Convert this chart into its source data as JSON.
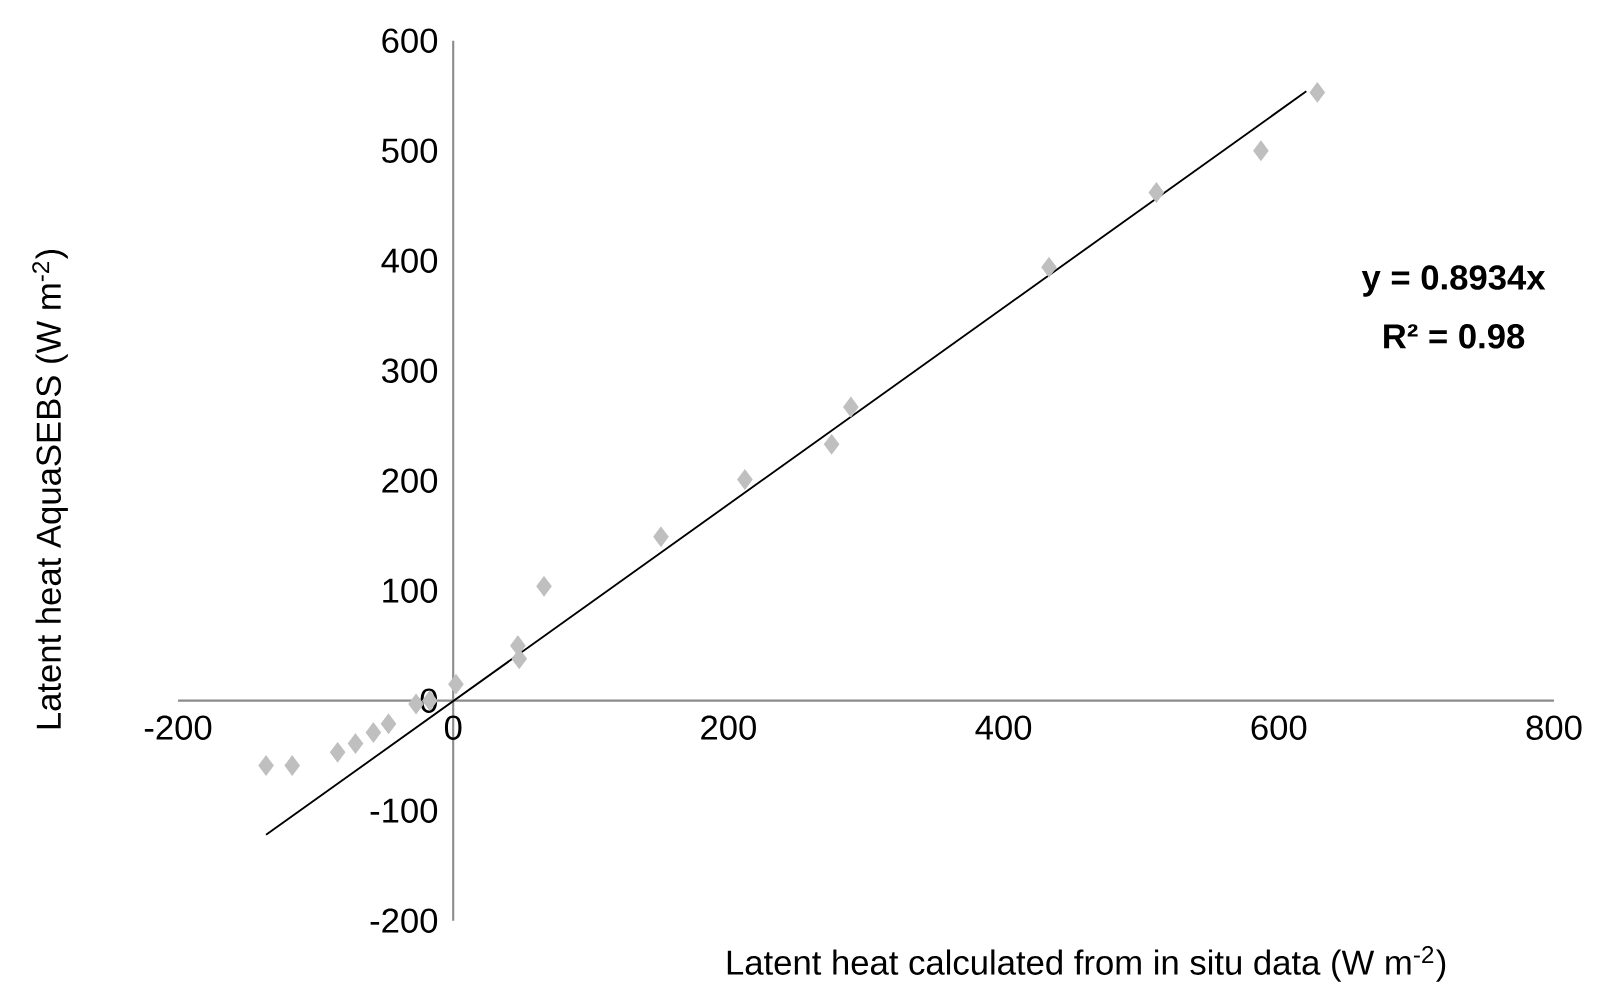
{
  "chart_data": {
    "type": "scatter",
    "xlabel": "Latent heat calculated from in situ data (W m$^{-2}$)",
    "ylabel": "Latent heat AquaSEBS (W m$^{-2}$)",
    "annotations": [
      "**y = 0.8934x**",
      "**R² = 0.98**"
    ],
    "series": [
      {
        "type": "scatter",
        "color": "#bfbfbf",
        "marker": "diamond",
        "x": [
          -136,
          -117,
          -84,
          -71,
          -58,
          -47,
          -27,
          -17,
          2,
          47,
          48,
          66,
          151,
          212,
          275,
          289,
          433,
          511,
          587,
          628
        ],
        "values": [
          -59,
          -59,
          -47,
          -39,
          -29,
          -21,
          -3,
          0,
          15,
          50,
          38,
          104,
          149,
          201,
          233,
          267,
          394,
          462,
          500,
          553
        ]
      },
      {
        "type": "line",
        "color": "#000000",
        "marker": "none",
        "x": [
          -136,
          620
        ],
        "values": [
          -122,
          554
        ]
      }
    ],
    "xlim": [
      -200,
      800
    ],
    "ylim": [
      -200,
      600
    ],
    "xticks": [
      -200,
      0,
      200,
      400,
      600,
      800
    ],
    "yticks": [
      -200,
      -100,
      0,
      100,
      200,
      300,
      400,
      500,
      600
    ]
  }
}
